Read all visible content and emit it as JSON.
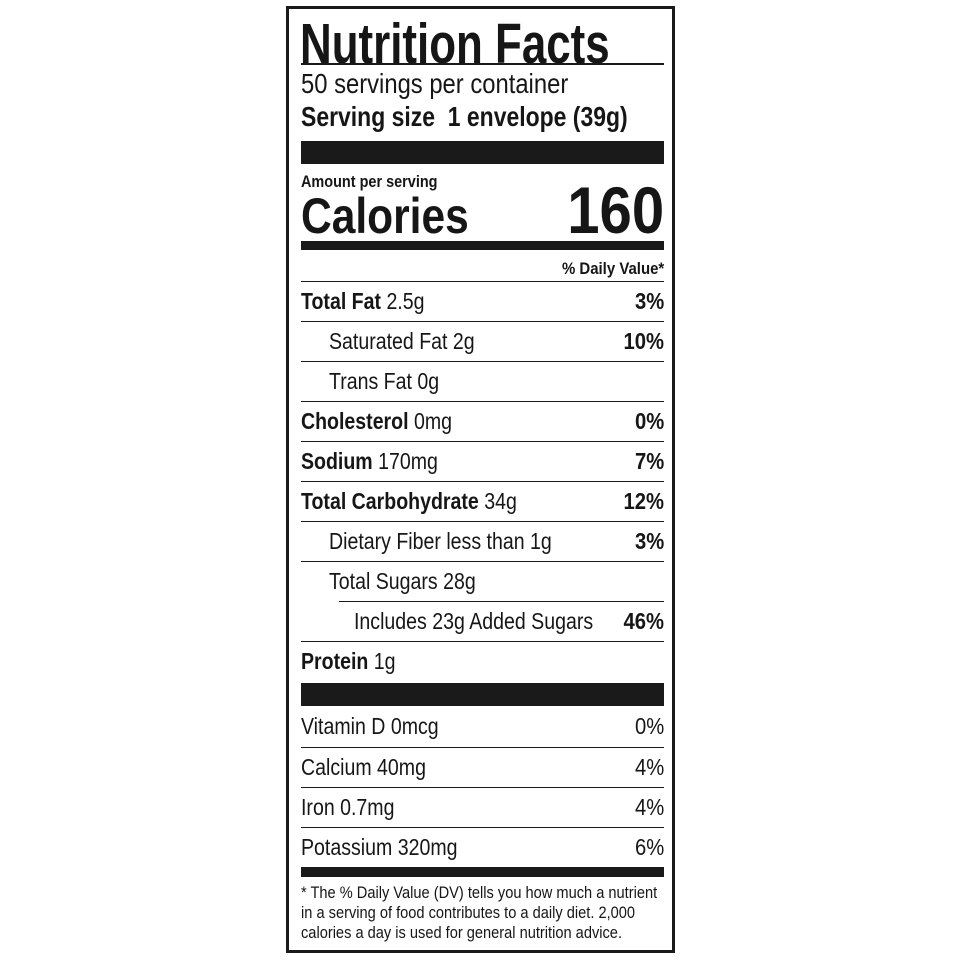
{
  "title": "Nutrition Facts",
  "servings_per_container": "50 servings per container",
  "serving_size_label": "Serving size",
  "serving_size_value": "1 envelope (39g)",
  "amount_per_serving": "Amount per serving",
  "calories_label": "Calories",
  "calories_value": "160",
  "daily_value_header": "% Daily Value*",
  "nutrients": [
    {
      "name": "Total Fat",
      "amount": "2.5g",
      "dv": "3%"
    },
    {
      "name": "Saturated Fat 2g",
      "amount": "",
      "dv": "10%"
    },
    {
      "name": "Trans Fat 0g",
      "amount": "",
      "dv": ""
    },
    {
      "name": "Cholesterol",
      "amount": "0mg",
      "dv": "0%"
    },
    {
      "name": "Sodium",
      "amount": "170mg",
      "dv": "7%"
    },
    {
      "name": "Total Carbohydrate",
      "amount": "34g",
      "dv": "12%"
    },
    {
      "name": "Dietary Fiber less than 1g",
      "amount": "",
      "dv": "3%"
    },
    {
      "name": "Total Sugars 28g",
      "amount": "",
      "dv": ""
    },
    {
      "name": "Includes 23g Added Sugars",
      "amount": "",
      "dv": "46%"
    },
    {
      "name": "Protein",
      "amount": "1g",
      "dv": ""
    }
  ],
  "vitamins": [
    {
      "name": "Vitamin D 0mcg",
      "dv": "0%"
    },
    {
      "name": "Calcium 40mg",
      "dv": "4%"
    },
    {
      "name": "Iron 0.7mg",
      "dv": "4%"
    },
    {
      "name": "Potassium 320mg",
      "dv": "6%"
    }
  ],
  "footnote": "* The % Daily Value (DV) tells you how much a nutrient in a serving of food contributes to a daily diet. 2,000 calories a day is used for general nutrition advice."
}
